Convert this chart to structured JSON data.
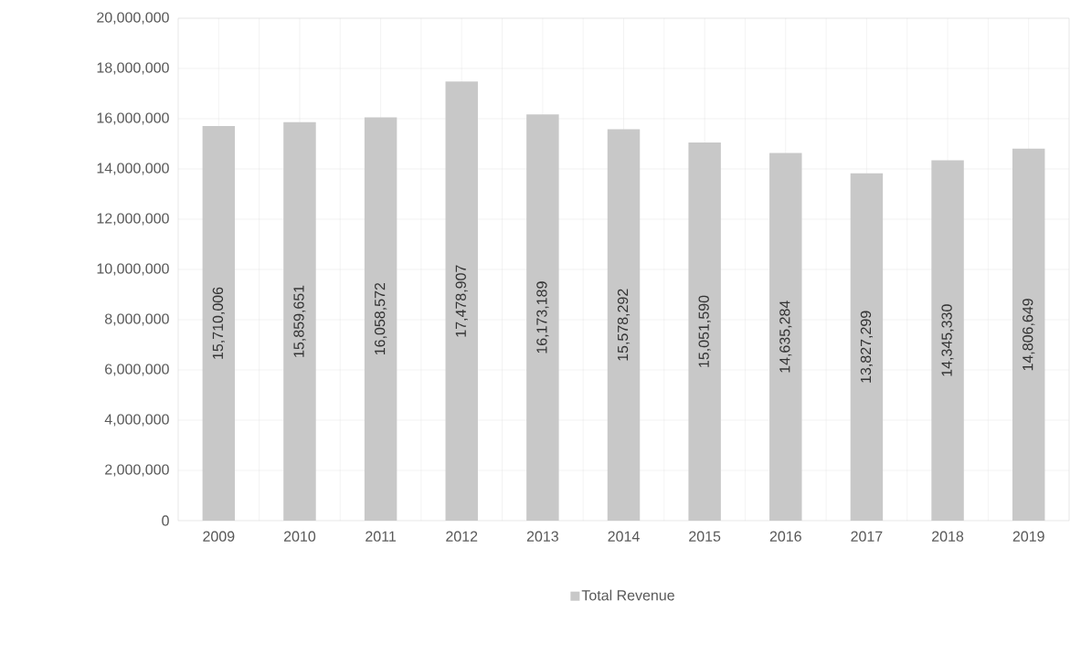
{
  "chart_data": {
    "type": "bar",
    "categories": [
      "2009",
      "2010",
      "2011",
      "2012",
      "2013",
      "2014",
      "2015",
      "2016",
      "2017",
      "2018",
      "2019"
    ],
    "series": [
      {
        "name": "Total Revenue",
        "color": "#c8c8c8",
        "values": [
          15710006,
          15859651,
          16058572,
          17478907,
          16173189,
          15578292,
          15051590,
          14635284,
          13827299,
          14345330,
          14806649
        ],
        "value_labels": [
          "15,710,006",
          "15,859,651",
          "16,058,572",
          "17,478,907",
          "16,173,189",
          "15,578,292",
          "15,051,590",
          "14,635,284",
          "13,827,299",
          "14,345,330",
          "14,806,649"
        ]
      }
    ],
    "ylim": [
      0,
      20000000
    ],
    "yticks": [
      0,
      {
        "value": 2000000,
        "label": "2,000,000"
      },
      {
        "value": 4000000,
        "label": "4,000,000"
      },
      {
        "value": 6000000,
        "label": "6,000,000"
      },
      {
        "value": 8000000,
        "label": "8,000,000"
      },
      {
        "value": 10000000,
        "label": "10,000,000"
      },
      {
        "value": 12000000,
        "label": "12,000,000"
      },
      {
        "value": 14000000,
        "label": "14,000,000"
      },
      {
        "value": 16000000,
        "label": "16,000,000"
      },
      {
        "value": 18000000,
        "label": "18,000,000"
      },
      {
        "value": 20000000,
        "label": "20,000,000"
      }
    ],
    "grid": true,
    "legend": "bottom"
  }
}
